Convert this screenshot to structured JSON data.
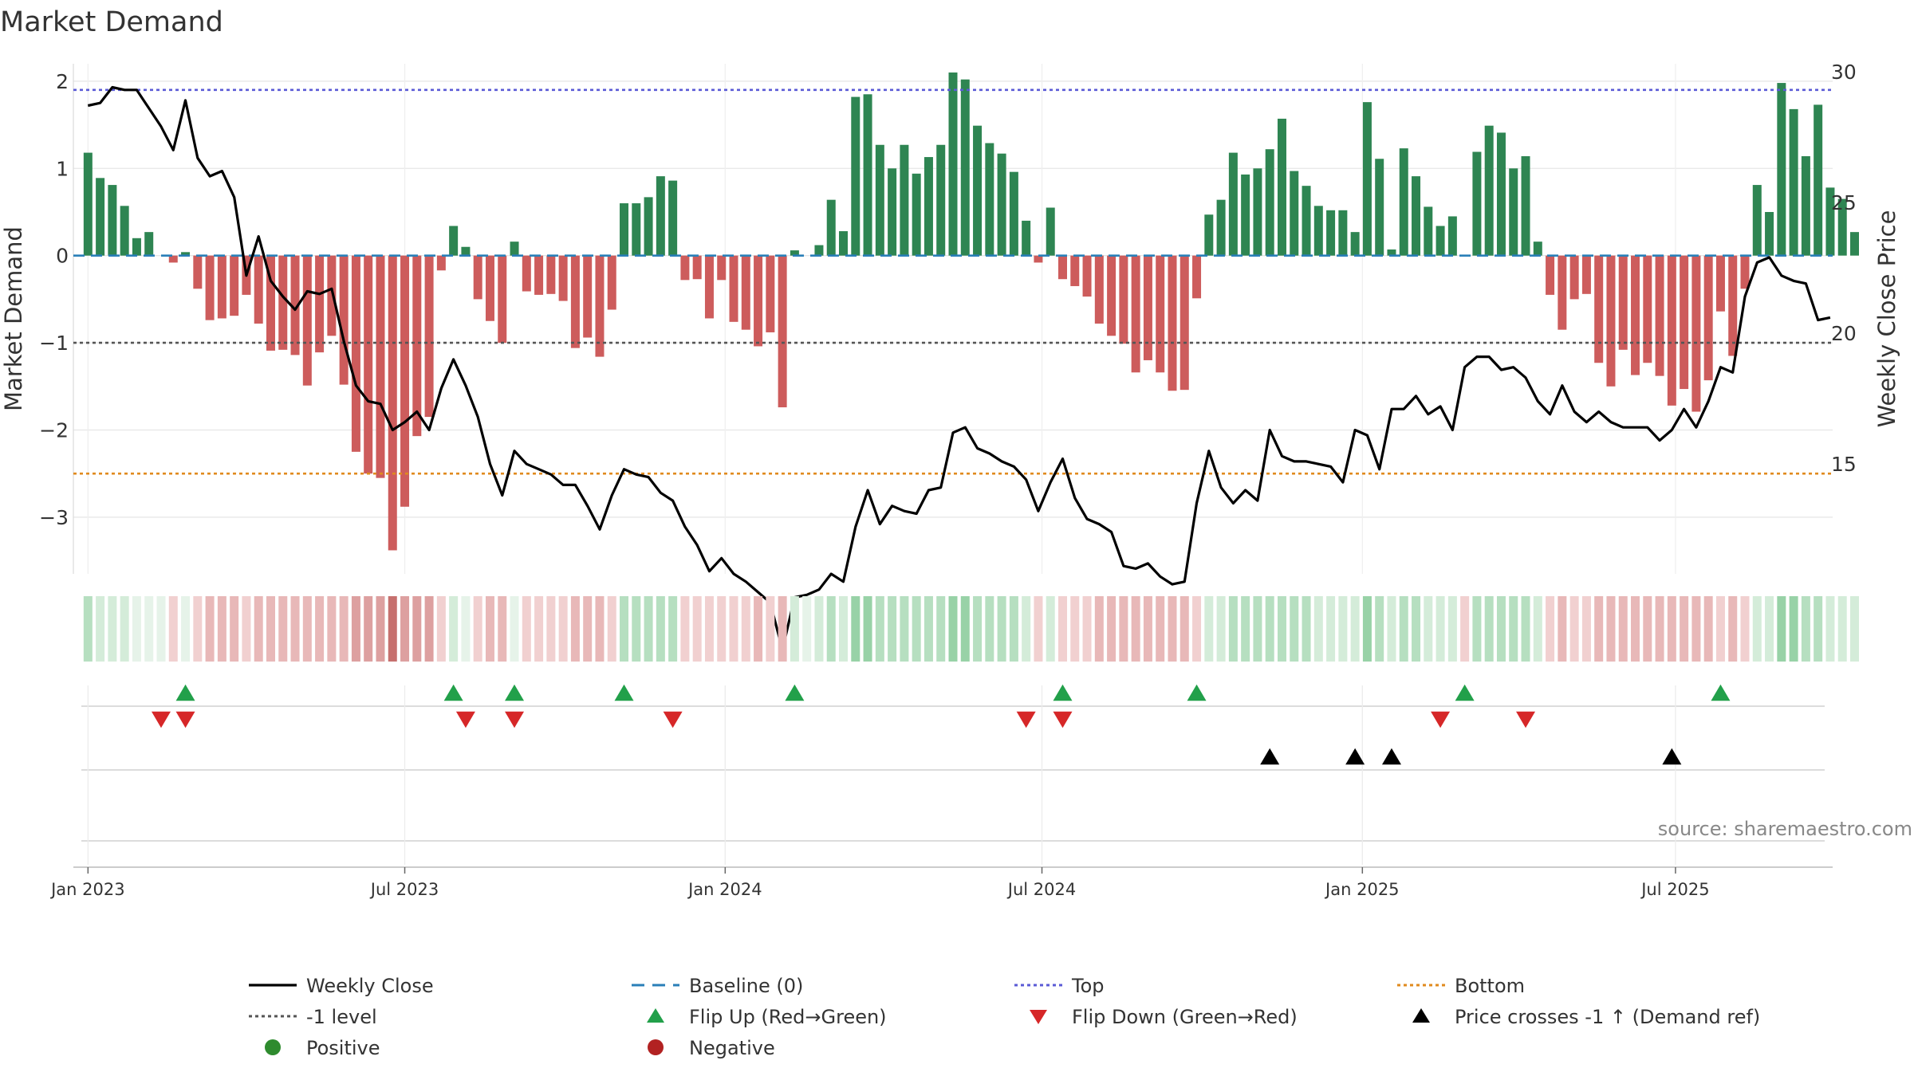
{
  "chart_data": {
    "type": "bar",
    "title": "Market Demand",
    "ylabel_left": "Market Demand",
    "ylabel_right": "Weekly Close Price",
    "left_ylim": [
      -3.65,
      2.2
    ],
    "right_ylim": [
      10.8,
      30.3
    ],
    "left_ticks": [
      2,
      1,
      0,
      -1,
      -2,
      -3
    ],
    "left_tick_labels": [
      "2",
      "1",
      "0",
      "−1",
      "−2",
      "−3"
    ],
    "right_ticks": [
      30,
      25,
      20,
      15
    ],
    "right_tick_labels": [
      "30",
      "25",
      "20",
      "15"
    ],
    "x_ticks": [
      {
        "week": 0,
        "label": "Jan 2023"
      },
      {
        "week": 26,
        "label": "Jul 2023"
      },
      {
        "week": 52.3,
        "label": "Jan 2024"
      },
      {
        "week": 78.3,
        "label": "Jul 2024"
      },
      {
        "week": 104.6,
        "label": "Jan 2025"
      },
      {
        "week": 130.3,
        "label": "Jul 2025"
      }
    ],
    "x_range": [
      -1.2,
      143.2
    ],
    "reference_lines": {
      "top": 1.9,
      "level": -1,
      "bottom": -2.5,
      "baseline": 0
    },
    "demand": [
      1.18,
      0.89,
      0.81,
      0.57,
      0.2,
      0.27,
      0,
      -0.08,
      0.04,
      -0.38,
      -0.74,
      -0.72,
      -0.69,
      -0.45,
      -0.78,
      -1.09,
      -1.08,
      -1.14,
      -1.49,
      -1.11,
      -0.92,
      -1.48,
      -2.25,
      -2.5,
      -2.55,
      -3.38,
      -2.88,
      -2.07,
      -1.85,
      -0.17,
      0.34,
      0.1,
      -0.5,
      -0.75,
      -1.0,
      0.16,
      -0.41,
      -0.45,
      -0.44,
      -0.52,
      -1.06,
      -0.94,
      -1.16,
      -0.62,
      0.6,
      0.6,
      0.67,
      0.91,
      0.86,
      -0.28,
      -0.27,
      -0.72,
      -0.28,
      -0.76,
      -0.85,
      -1.04,
      -0.88,
      -1.74,
      0.06,
      0,
      0.12,
      0.64,
      0.28,
      1.82,
      1.85,
      1.27,
      1.0,
      1.27,
      0.94,
      1.13,
      1.27,
      2.1,
      2.02,
      1.49,
      1.29,
      1.17,
      0.96,
      0.4,
      -0.08,
      0.55,
      -0.27,
      -0.35,
      -0.47,
      -0.78,
      -0.92,
      -1.01,
      -1.34,
      -1.2,
      -1.34,
      -1.55,
      -1.54,
      -0.49,
      0.47,
      0.64,
      1.18,
      0.93,
      1.0,
      1.22,
      1.57,
      0.97,
      0.8,
      0.57,
      0.52,
      0.52,
      0.27,
      1.76,
      1.11,
      0.07,
      1.23,
      0.91,
      0.56,
      0.34,
      0.45,
      0,
      1.19,
      1.49,
      1.41,
      1.0,
      1.14,
      0.16,
      -0.45,
      -0.85,
      -0.5,
      -0.44,
      -1.23,
      -1.5,
      -1.08,
      -1.37,
      -1.23,
      -1.38,
      -1.72,
      -1.53,
      -1.79,
      -1.43,
      -0.64,
      -1.15,
      -0.38,
      0.81,
      0.5,
      1.98,
      1.68,
      1.14,
      1.73,
      0.78,
      0.65,
      0.27
    ],
    "price": [
      28.7,
      28.8,
      29.4,
      29.3,
      29.3,
      28.6,
      27.9,
      27.0,
      28.9,
      26.7,
      26.0,
      26.2,
      25.2,
      22.2,
      23.7,
      22.0,
      21.4,
      20.9,
      21.6,
      21.5,
      21.7,
      19.7,
      18.0,
      17.4,
      17.3,
      16.3,
      16.6,
      17.0,
      16.3,
      17.9,
      19.0,
      18.0,
      16.8,
      15.0,
      13.8,
      15.5,
      15.0,
      14.8,
      14.6,
      14.2,
      14.2,
      13.4,
      12.5,
      13.8,
      14.8,
      14.6,
      14.5,
      13.9,
      13.6,
      12.6,
      11.9,
      10.9,
      11.4,
      10.8,
      10.5,
      10.1,
      9.7,
      7.9,
      9.9,
      10.0,
      10.2,
      10.8,
      10.5,
      12.6,
      14.0,
      12.7,
      13.4,
      13.2,
      13.1,
      14.0,
      14.1,
      16.2,
      16.4,
      15.6,
      15.4,
      15.1,
      14.9,
      14.4,
      13.2,
      14.3,
      15.2,
      13.7,
      12.9,
      12.7,
      12.4,
      11.1,
      11.0,
      11.2,
      10.7,
      10.4,
      10.5,
      13.5,
      15.5,
      14.1,
      13.5,
      14.0,
      13.6,
      16.3,
      15.3,
      15.1,
      15.1,
      15.0,
      14.9,
      14.3,
      16.3,
      16.1,
      14.8,
      17.1,
      17.1,
      17.6,
      16.9,
      17.2,
      16.3,
      18.7,
      19.1,
      19.1,
      18.6,
      18.7,
      18.3,
      17.4,
      16.9,
      18.0,
      17.0,
      16.6,
      17.0,
      16.6,
      16.4,
      16.4,
      16.4,
      15.9,
      16.3,
      17.1,
      16.4,
      17.4,
      18.7,
      18.5,
      21.4,
      22.7,
      22.9,
      22.2,
      22.0,
      21.9,
      20.5,
      20.6
    ],
    "strip": [
      2,
      1,
      1,
      1,
      0,
      0,
      0,
      -1,
      0,
      -1,
      -2,
      -2,
      -2,
      -1,
      -2,
      -2,
      -2,
      -2,
      -2,
      -2,
      -2,
      -2,
      -3,
      -3,
      -3,
      -4,
      -3,
      -3,
      -3,
      -1,
      1,
      0,
      -1,
      -2,
      -2,
      0,
      -1,
      -1,
      -1,
      -1,
      -2,
      -2,
      -2,
      -1,
      2,
      2,
      2,
      2,
      2,
      -1,
      -1,
      -1,
      -1,
      -1,
      -1,
      -2,
      -1,
      -2,
      1,
      0,
      1,
      2,
      1,
      3,
      3,
      2,
      2,
      2,
      2,
      2,
      2,
      3,
      3,
      2,
      2,
      2,
      2,
      1,
      -1,
      1,
      -1,
      -1,
      -1,
      -2,
      -2,
      -2,
      -2,
      -2,
      -2,
      -2,
      -2,
      -1,
      1,
      1,
      2,
      2,
      2,
      2,
      2,
      2,
      2,
      1,
      1,
      1,
      1,
      3,
      2,
      1,
      2,
      2,
      1,
      1,
      1,
      -1,
      2,
      2,
      2,
      2,
      2,
      1,
      -1,
      -2,
      -1,
      -1,
      -2,
      -2,
      -2,
      -2,
      -2,
      -2,
      -2,
      -2,
      -2,
      -2,
      -1,
      -2,
      -1,
      1,
      1,
      3,
      3,
      2,
      2,
      1,
      1,
      1
    ],
    "flip_up_weeks": [
      8,
      30,
      35,
      44,
      58,
      80,
      91,
      113,
      134
    ],
    "flip_down_weeks": [
      6,
      8,
      31,
      35,
      48,
      77,
      80,
      111,
      118
    ],
    "price_cross_weeks": [
      97,
      104,
      107,
      130
    ],
    "legend": [
      {
        "key": "weekly_close",
        "label": "Weekly Close",
        "color": "#000000"
      },
      {
        "key": "baseline",
        "label": "Baseline (0)",
        "color": "#1f77b4"
      },
      {
        "key": "top",
        "label": "Top",
        "color": "#5b5bd6"
      },
      {
        "key": "bottom",
        "label": "Bottom",
        "color": "#e08a1e"
      },
      {
        "key": "level",
        "label": "-1 level",
        "color": "#555555"
      },
      {
        "key": "flip_up",
        "label": "Flip Up (Red→Green)",
        "color": "#2ca02c"
      },
      {
        "key": "flip_down",
        "label": "Flip Down (Green→Red)",
        "color": "#d62728"
      },
      {
        "key": "price_cross",
        "label": "Price crosses -1 ↑ (Demand ref)",
        "color": "#000000"
      },
      {
        "key": "positive",
        "label": "Positive",
        "color": "#2e8b2e"
      },
      {
        "key": "negative",
        "label": "Negative",
        "color": "#b22222"
      }
    ],
    "source": "source: sharemaestro.com"
  },
  "colors": {
    "positive_bar": "#2e8552",
    "negative_bar": "#cd5c5c",
    "baseline": "#2a7fb8",
    "top": "#5b5bd6",
    "bottom": "#e08a1e",
    "level": "#555555",
    "flip_up": "#22a04a",
    "flip_down": "#d62728",
    "grid": "#e6e6e6"
  }
}
